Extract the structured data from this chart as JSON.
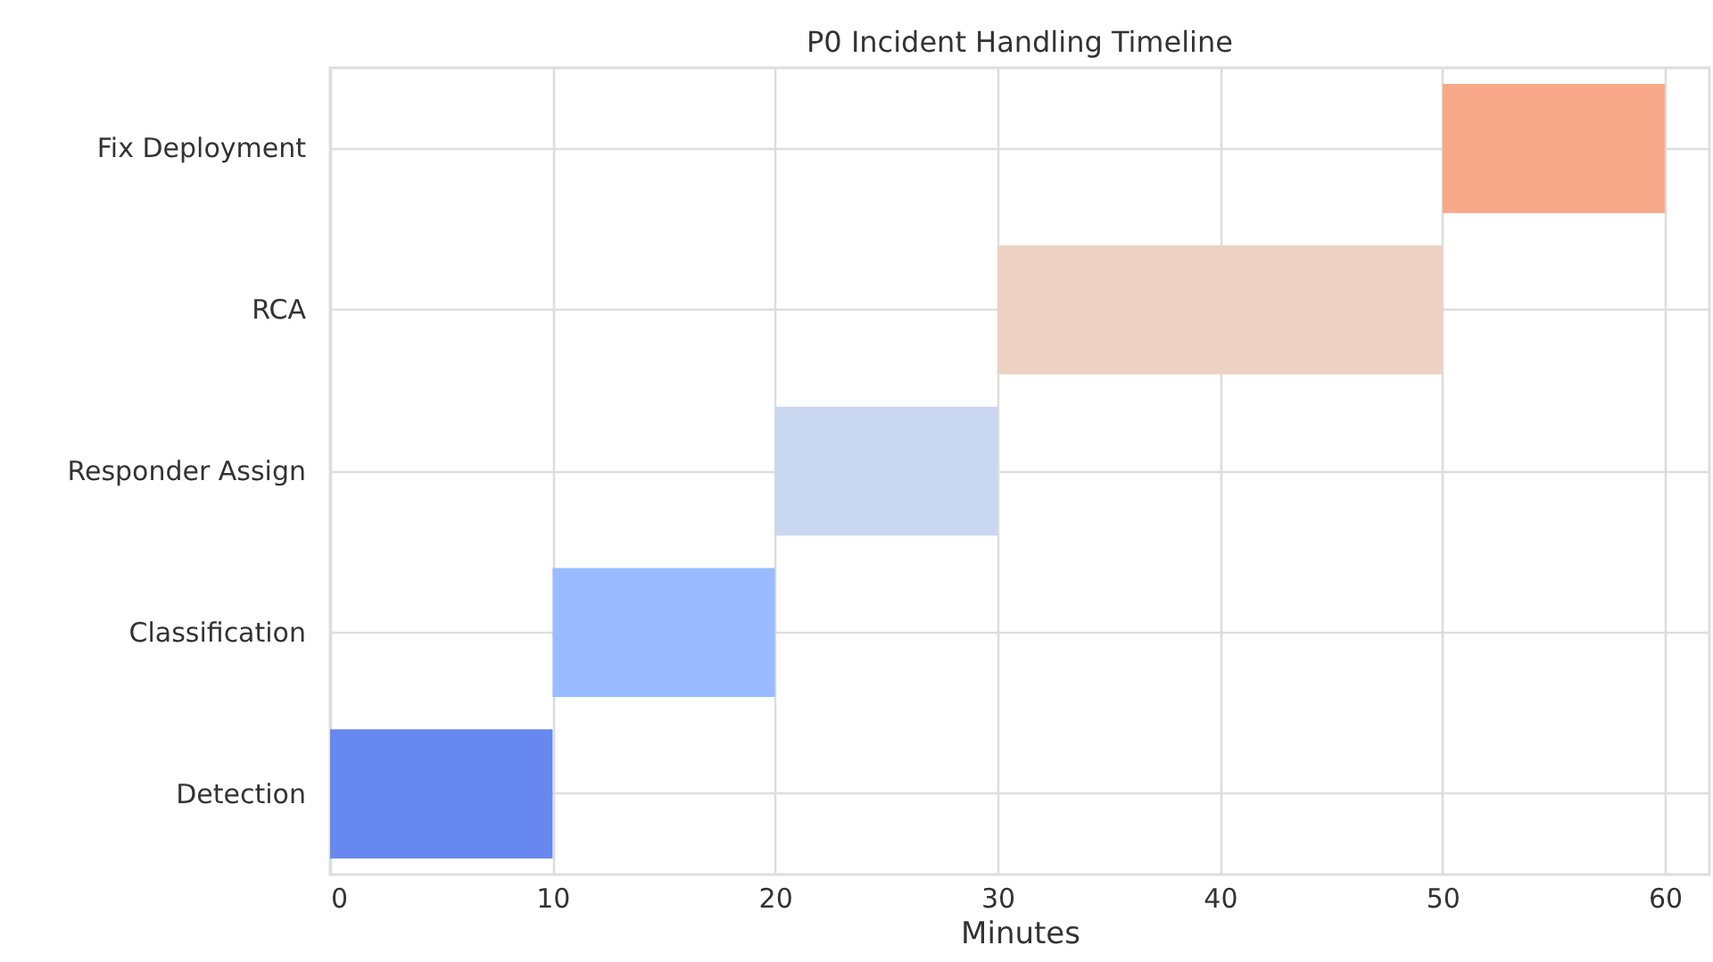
{
  "chart_data": {
    "type": "bar",
    "title": "P0 Incident Handling Timeline",
    "xlabel": "Minutes",
    "orientation": "horizontal",
    "categories": [
      "Fix Deployment",
      "RCA",
      "Responder Assign",
      "Classification",
      "Detection"
    ],
    "base": [
      50,
      30,
      20,
      10,
      0
    ],
    "values": [
      10,
      20,
      10,
      10,
      10
    ],
    "colors": [
      "#f7a889",
      "#edd1c2",
      "#c9d7f0",
      "#9abbff",
      "#6788ee"
    ],
    "xlim": [
      0,
      62
    ],
    "xticks": [
      0,
      10,
      20,
      30,
      40,
      50,
      60
    ],
    "grid": true,
    "legend": false
  }
}
